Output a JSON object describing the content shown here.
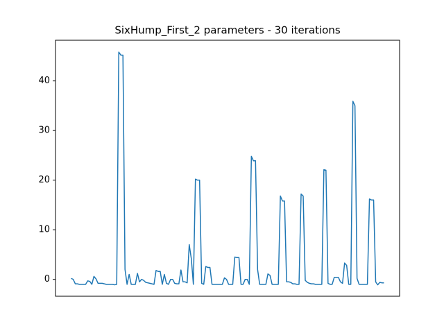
{
  "chart_data": {
    "type": "line",
    "title": "SixHump_First_2 parameters - 30 iterations",
    "series": [
      {
        "color": "#1f77b4",
        "values": [
          0.2,
          0,
          -0.9,
          -0.9,
          -1.0,
          -1.0,
          -1.0,
          -1.0,
          -0.3,
          -0.4,
          -1.0,
          0.6,
          0.1,
          -0.8,
          -0.8,
          -0.8,
          -0.9,
          -1.0,
          -1.0,
          -1.0,
          -1.0,
          -1.1,
          -1.0,
          45.8,
          45.2,
          45.2,
          2,
          -1.0,
          1.0,
          -1.0,
          -1.0,
          -1.0,
          1.2,
          -0.5,
          0,
          -0.2,
          -0.6,
          -0.7,
          -0.8,
          -0.9,
          -1.0,
          1.8,
          1.6,
          1.6,
          -1.0,
          1.0,
          -0.8,
          -1.0,
          0,
          0,
          -0.8,
          -0.9,
          -0.9,
          1.9,
          -0.5,
          -0.5,
          -0.7,
          7.0,
          4.2,
          -1.0,
          20.2,
          20.0,
          20.0,
          -0.8,
          -1.0,
          2.6,
          2.4,
          2.4,
          -1.0,
          -1.0,
          -1.0,
          -1.0,
          -1.0,
          -1.0,
          0.3,
          0,
          -1.0,
          -1.0,
          -1.0,
          4.5,
          4.4,
          4.4,
          -1.0,
          -1.0,
          0,
          0,
          -1.0,
          24.8,
          23.9,
          23.9,
          2,
          -1.0,
          -1.0,
          -1.0,
          -1.0,
          1.1,
          0.8,
          -1.0,
          -1.0,
          -1.0,
          -1.0,
          16.8,
          15.8,
          15.8,
          -0.5,
          -0.5,
          -0.6,
          -0.9,
          -0.9,
          -1.0,
          -1.0,
          17.2,
          16.8,
          -0.2,
          -0.6,
          -0.8,
          -0.9,
          -0.9,
          -1.0,
          -1.0,
          -1.0,
          -1.0,
          22.1,
          22.0,
          -0.8,
          -1.0,
          -1.0,
          0.4,
          0.4,
          0.4,
          -0.5,
          -0.8,
          3.3,
          2.8,
          -1.0,
          -1.0,
          35.9,
          35.0,
          0.2,
          -1.0,
          -1.0,
          -1.0,
          -1.0,
          -1.0,
          16.2,
          16.0,
          16.0,
          -0.5,
          -1.1,
          -0.6,
          -0.7,
          -0.7
        ]
      }
    ],
    "ylim": [
      -3.4,
      48.2
    ],
    "yticks": [
      0,
      10,
      20,
      30,
      40
    ]
  }
}
